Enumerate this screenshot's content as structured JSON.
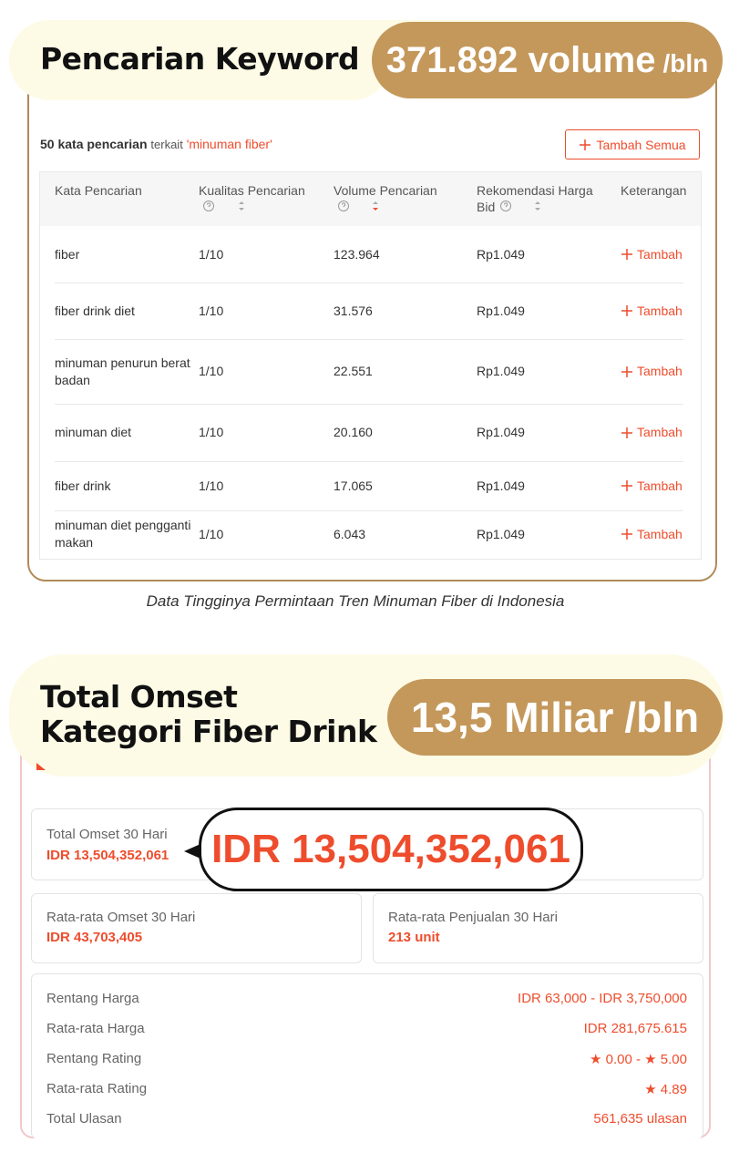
{
  "keyword_section": {
    "title": "Pencarian Keyword",
    "volume": "371.892 volume",
    "volume_unit": "/bln",
    "summary": {
      "count": "50 kata pencarian",
      "connector": "terkait",
      "keyword": "'minuman fiber'"
    },
    "add_all_button": "Tambah Semua",
    "table": {
      "headers": [
        "Kata Pencarian",
        "Kualitas Pencarian",
        "Volume Pencarian",
        "Rekomendasi Harga Bid",
        "Keterangan"
      ],
      "rows": [
        [
          "fiber",
          "1/10",
          "123.964",
          "Rp1.049",
          "Tambah"
        ],
        [
          "fiber drink diet",
          "1/10",
          "31.576",
          "Rp1.049",
          "Tambah"
        ],
        [
          "minuman penurun berat badan",
          "1/10",
          "22.551",
          "Rp1.049",
          "Tambah"
        ],
        [
          "minuman diet",
          "1/10",
          "20.160",
          "Rp1.049",
          "Tambah"
        ],
        [
          "fiber drink",
          "1/10",
          "17.065",
          "Rp1.049",
          "Tambah"
        ],
        [
          "minuman diet pengganti makan",
          "1/10",
          "6.043",
          "Rp1.049",
          "Tambah"
        ]
      ]
    },
    "caption": "Data Tingginya Permintaan Tren Minuman Fiber di Indonesia"
  },
  "omset_section": {
    "title_lines": [
      "Total Omset",
      "Kategori Fiber Drink"
    ],
    "highlight": "13,5 Miliar",
    "highlight_unit": "/bln",
    "total": {
      "label": "Total Omset 30 Hari",
      "value": "IDR 13,504,352,061"
    },
    "callout": "IDR 13,504,352,061",
    "avg_omset": {
      "label": "Rata-rata Omset 30 Hari",
      "value": "IDR 43,703,405"
    },
    "avg_sales": {
      "label": "Rata-rata Penjualan 30 Hari",
      "value": "213 unit"
    },
    "stats": [
      {
        "label": "Rentang Harga",
        "value": "IDR 63,000 - IDR 3,750,000"
      },
      {
        "label": "Rata-rata Harga",
        "value": "IDR 281,675.615"
      },
      {
        "label": "Rentang Rating",
        "value": "★ 0.00 - ★ 5.00"
      },
      {
        "label": "Rata-rata Rating",
        "value": "★ 4.89"
      },
      {
        "label": "Total Ulasan",
        "value": "561,635 ulasan"
      }
    ]
  }
}
